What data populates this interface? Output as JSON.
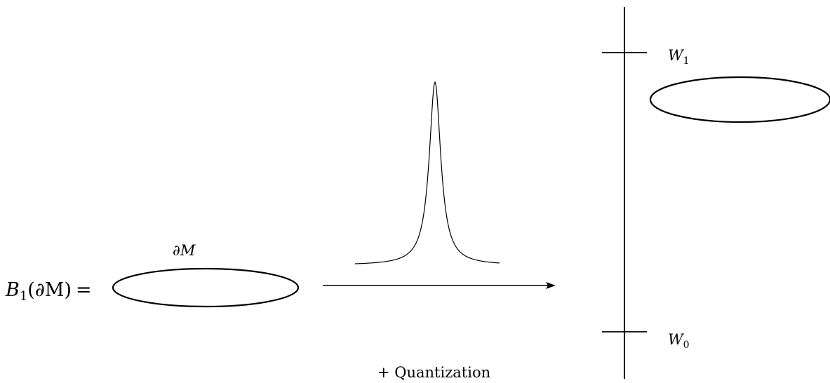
{
  "lhs": {
    "operator": "B",
    "operator_sub": "1",
    "argument": "(∂M)",
    "equals": "="
  },
  "boundary_label": "∂M",
  "arrow_label": "+ Quantization",
  "wall_top": {
    "name": "W",
    "sub": "1"
  },
  "wall_bottom": {
    "name": "W",
    "sub": "0"
  },
  "colors": {
    "ink": "#000000",
    "background": "#ffffff"
  }
}
